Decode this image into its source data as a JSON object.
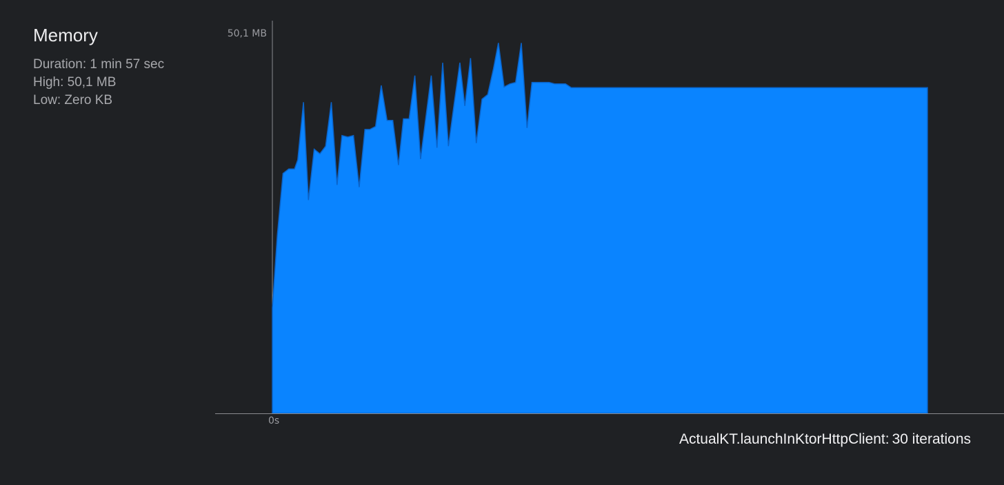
{
  "summary": {
    "title": "Memory",
    "duration": "Duration: 1 min 57 sec",
    "high": "High: 50,1 MB",
    "low": "Low: Zero KB"
  },
  "footer": {
    "test_name": "ActualKT.launchInKtorHttpClient:",
    "iterations": "30 iterations"
  },
  "colors": {
    "background": "#1f2124",
    "fill": "#0a84ff",
    "stroke": "#0a63c9",
    "axis": "#8a8b90"
  },
  "chart_data": {
    "type": "area",
    "title": "",
    "xlabel": "",
    "ylabel": "",
    "ylim": [
      0,
      50.1
    ],
    "y_unit": "MB",
    "y_ticks": [
      {
        "value": 50.1,
        "label": "50,1 MB"
      }
    ],
    "x_ticks": [
      {
        "value": 0,
        "label": "0s"
      }
    ],
    "x_max": 117,
    "series": [
      {
        "values": [
          [
            0,
            13.9
          ],
          [
            0.6,
            23.4
          ],
          [
            1.3,
            31.6
          ],
          [
            2.0,
            32.2
          ],
          [
            2.7,
            32.2
          ],
          [
            3.1,
            33.4
          ],
          [
            3.8,
            41.0
          ],
          [
            4.4,
            28.1
          ],
          [
            5.1,
            34.8
          ],
          [
            5.8,
            34.2
          ],
          [
            6.5,
            35.2
          ],
          [
            7.2,
            41.0
          ],
          [
            7.9,
            30.1
          ],
          [
            8.5,
            36.6
          ],
          [
            9.2,
            36.4
          ],
          [
            9.9,
            36.6
          ],
          [
            10.6,
            29.8
          ],
          [
            11.3,
            37.4
          ],
          [
            11.9,
            37.4
          ],
          [
            12.6,
            37.8
          ],
          [
            13.3,
            43.2
          ],
          [
            14.0,
            38.6
          ],
          [
            14.7,
            38.6
          ],
          [
            15.4,
            32.7
          ],
          [
            16.0,
            38.8
          ],
          [
            16.7,
            38.8
          ],
          [
            17.4,
            44.5
          ],
          [
            18.1,
            33.5
          ],
          [
            18.8,
            39.5
          ],
          [
            19.4,
            44.5
          ],
          [
            20.1,
            35.0
          ],
          [
            20.8,
            46.2
          ],
          [
            21.5,
            35.2
          ],
          [
            22.2,
            40.8
          ],
          [
            22.9,
            46.2
          ],
          [
            23.5,
            40.5
          ],
          [
            24.2,
            46.8
          ],
          [
            24.9,
            35.6
          ],
          [
            25.6,
            41.4
          ],
          [
            26.3,
            42.0
          ],
          [
            27.0,
            45.4
          ],
          [
            27.6,
            48.8
          ],
          [
            28.3,
            43.0
          ],
          [
            29.0,
            43.4
          ],
          [
            29.7,
            43.6
          ],
          [
            30.4,
            48.8
          ],
          [
            31.1,
            37.6
          ],
          [
            31.7,
            43.6
          ],
          [
            32.4,
            43.6
          ],
          [
            33.1,
            43.6
          ],
          [
            33.8,
            43.6
          ],
          [
            34.5,
            43.4
          ],
          [
            35.2,
            43.4
          ],
          [
            35.8,
            43.4
          ],
          [
            36.5,
            42.9
          ],
          [
            36.7,
            42.9
          ],
          [
            80.0,
            42.9
          ]
        ]
      }
    ]
  }
}
